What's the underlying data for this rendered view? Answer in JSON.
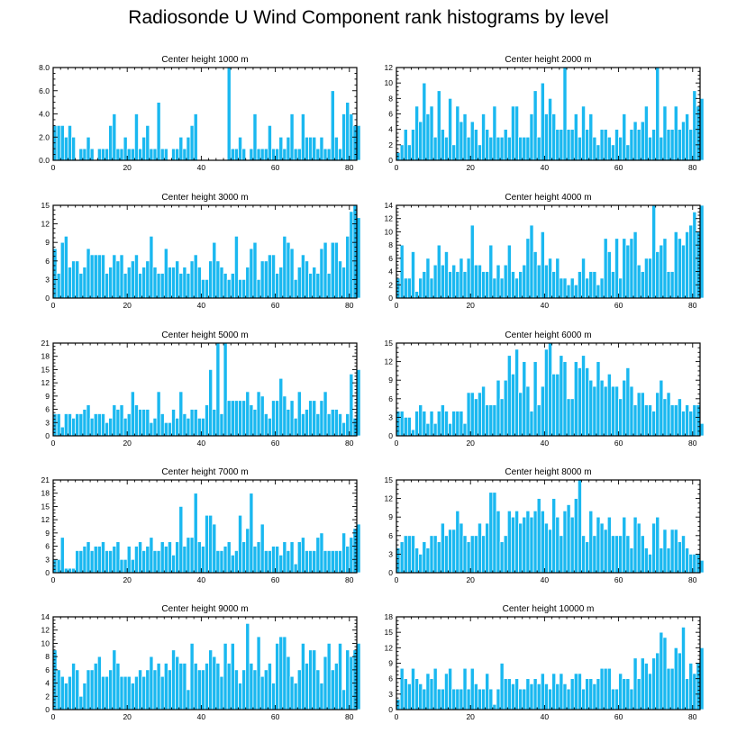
{
  "figure": {
    "title": "Radiosonde U Wind Component rank histograms by level",
    "bar_color": "#1ab8f0",
    "bar_edge_color": "#ffffff",
    "axis_color": "#000000"
  },
  "chart_data": [
    {
      "type": "bar",
      "title": "Center height 1000 m",
      "xlim": [
        0,
        82
      ],
      "xticks": [
        0,
        20,
        40,
        60,
        80
      ],
      "ylim": [
        0,
        8
      ],
      "yticks": [
        0,
        2,
        4,
        6,
        8
      ],
      "ytick_labels": [
        "0.0",
        "2.0",
        "4.0",
        "6.0",
        "8.0"
      ],
      "values": [
        3,
        3,
        3,
        2,
        3,
        2,
        0,
        1,
        1,
        2,
        1,
        0,
        1,
        1,
        1,
        3,
        4,
        1,
        1,
        2,
        1,
        1,
        4,
        1,
        2,
        3,
        1,
        1,
        5,
        1,
        1,
        0,
        1,
        1,
        2,
        1,
        2,
        3,
        4,
        0,
        0,
        0,
        0,
        0,
        0,
        0,
        0,
        8,
        1,
        1,
        2,
        1,
        0,
        1,
        4,
        1,
        1,
        1,
        3,
        1,
        1,
        2,
        1,
        2,
        4,
        1,
        1,
        4,
        2,
        2,
        2,
        1,
        2,
        1,
        1,
        6,
        2,
        1,
        4,
        5,
        4,
        3,
        3
      ]
    },
    {
      "type": "bar",
      "title": "Center height 2000 m",
      "xlim": [
        0,
        82
      ],
      "xticks": [
        0,
        20,
        40,
        60,
        80
      ],
      "ylim": [
        0,
        12
      ],
      "yticks": [
        0,
        2,
        4,
        6,
        8,
        10,
        12
      ],
      "ytick_labels": [
        "0",
        "2",
        "4",
        "6",
        "8",
        "10",
        "12"
      ],
      "values": [
        1,
        2,
        4,
        2,
        4,
        7,
        5,
        10,
        6,
        7,
        3,
        9,
        4,
        3,
        8,
        2,
        7,
        5,
        6,
        3,
        5,
        4,
        2,
        6,
        4,
        3,
        7,
        3,
        3,
        4,
        3,
        7,
        7,
        3,
        3,
        3,
        6,
        9,
        3,
        10,
        6,
        8,
        6,
        4,
        4,
        12,
        4,
        4,
        6,
        3,
        7,
        4,
        6,
        3,
        2,
        4,
        4,
        3,
        2,
        4,
        3,
        6,
        2,
        4,
        5,
        4,
        5,
        7,
        3,
        4,
        12,
        3,
        7,
        4,
        4,
        7,
        4,
        5,
        6,
        4,
        9,
        7,
        8
      ]
    },
    {
      "type": "bar",
      "title": "Center height 3000 m",
      "xlim": [
        0,
        82
      ],
      "xticks": [
        0,
        20,
        40,
        60,
        80
      ],
      "ylim": [
        0,
        15
      ],
      "yticks": [
        0,
        3,
        6,
        9,
        12,
        15
      ],
      "ytick_labels": [
        "0",
        "3",
        "6",
        "9",
        "12",
        "15"
      ],
      "values": [
        8,
        4,
        9,
        10,
        5,
        6,
        6,
        4,
        5,
        8,
        7,
        7,
        7,
        7,
        4,
        5,
        7,
        6,
        7,
        4,
        5,
        6,
        7,
        4,
        5,
        6,
        10,
        5,
        4,
        4,
        8,
        5,
        5,
        6,
        4,
        5,
        4,
        6,
        7,
        5,
        3,
        3,
        6,
        9,
        6,
        5,
        4,
        3,
        4,
        10,
        3,
        3,
        5,
        8,
        9,
        3,
        6,
        6,
        7,
        7,
        4,
        5,
        10,
        9,
        8,
        3,
        5,
        7,
        6,
        4,
        5,
        4,
        8,
        9,
        4,
        9,
        9,
        6,
        5,
        10,
        14,
        15,
        13
      ]
    },
    {
      "type": "bar",
      "title": "Center height 4000 m",
      "xlim": [
        0,
        82
      ],
      "xticks": [
        0,
        20,
        40,
        60,
        80
      ],
      "ylim": [
        0,
        14
      ],
      "yticks": [
        0,
        2,
        4,
        6,
        8,
        10,
        12,
        14
      ],
      "ytick_labels": [
        "0",
        "2",
        "4",
        "6",
        "8",
        "10",
        "12",
        "14"
      ],
      "values": [
        3,
        8,
        3,
        3,
        7,
        1,
        3,
        4,
        6,
        3,
        5,
        8,
        5,
        7,
        4,
        5,
        4,
        6,
        4,
        6,
        11,
        5,
        5,
        4,
        4,
        8,
        3,
        5,
        3,
        5,
        8,
        4,
        3,
        4,
        5,
        9,
        11,
        7,
        5,
        10,
        5,
        6,
        4,
        6,
        3,
        3,
        2,
        3,
        2,
        4,
        6,
        3,
        4,
        4,
        2,
        3,
        9,
        7,
        4,
        9,
        3,
        9,
        8,
        9,
        10,
        5,
        4,
        6,
        6,
        14,
        7,
        8,
        9,
        4,
        4,
        10,
        9,
        8,
        10,
        11,
        13,
        10,
        14
      ]
    },
    {
      "type": "bar",
      "title": "Center height 5000 m",
      "xlim": [
        0,
        82
      ],
      "xticks": [
        0,
        20,
        40,
        60,
        80
      ],
      "ylim": [
        0,
        21
      ],
      "yticks": [
        0,
        3,
        6,
        9,
        12,
        15,
        18,
        21
      ],
      "ytick_labels": [
        "0",
        "3",
        "6",
        "9",
        "12",
        "15",
        "18",
        "21"
      ],
      "values": [
        5,
        5,
        2,
        5,
        5,
        4,
        5,
        5,
        6,
        7,
        4,
        5,
        5,
        5,
        3,
        4,
        7,
        6,
        7,
        4,
        5,
        10,
        7,
        6,
        6,
        6,
        3,
        4,
        10,
        5,
        3,
        3,
        6,
        4,
        10,
        5,
        4,
        6,
        6,
        4,
        4,
        7,
        15,
        6,
        21,
        5,
        21,
        8,
        8,
        8,
        8,
        8,
        10,
        7,
        6,
        10,
        9,
        5,
        4,
        8,
        8,
        13,
        9,
        6,
        8,
        4,
        10,
        5,
        6,
        8,
        8,
        5,
        8,
        10,
        5,
        6,
        6,
        5,
        3,
        5,
        14,
        4,
        15
      ]
    },
    {
      "type": "bar",
      "title": "Center height 6000 m",
      "xlim": [
        0,
        82
      ],
      "xticks": [
        0,
        20,
        40,
        60,
        80
      ],
      "ylim": [
        0,
        15
      ],
      "yticks": [
        0,
        3,
        6,
        9,
        12,
        15
      ],
      "ytick_labels": [
        "0",
        "3",
        "6",
        "9",
        "12",
        "15"
      ],
      "values": [
        4,
        4,
        3,
        3,
        1,
        4,
        5,
        4,
        2,
        4,
        2,
        4,
        5,
        4,
        2,
        4,
        4,
        4,
        2,
        7,
        7,
        6,
        7,
        8,
        5,
        5,
        5,
        9,
        6,
        9,
        13,
        10,
        14,
        7,
        12,
        8,
        4,
        12,
        5,
        8,
        14,
        15,
        10,
        10,
        13,
        12,
        6,
        6,
        12,
        11,
        13,
        11,
        9,
        8,
        12,
        9,
        8,
        10,
        8,
        8,
        6,
        9,
        11,
        8,
        5,
        7,
        7,
        5,
        5,
        4,
        7,
        9,
        6,
        7,
        5,
        5,
        6,
        4,
        5,
        4,
        5,
        5,
        2
      ]
    },
    {
      "type": "bar",
      "title": "Center height 7000 m",
      "xlim": [
        0,
        82
      ],
      "xticks": [
        0,
        20,
        40,
        60,
        80
      ],
      "ylim": [
        0,
        21
      ],
      "yticks": [
        0,
        3,
        6,
        9,
        12,
        15,
        18,
        21
      ],
      "ytick_labels": [
        "0",
        "3",
        "6",
        "9",
        "12",
        "15",
        "18",
        "21"
      ],
      "values": [
        3,
        3,
        8,
        1,
        1,
        1,
        5,
        5,
        6,
        7,
        5,
        6,
        6,
        7,
        5,
        5,
        6,
        7,
        3,
        3,
        6,
        3,
        6,
        7,
        5,
        6,
        8,
        5,
        5,
        7,
        6,
        7,
        4,
        7,
        15,
        6,
        8,
        8,
        18,
        7,
        6,
        13,
        13,
        11,
        5,
        5,
        6,
        7,
        4,
        5,
        13,
        7,
        10,
        18,
        6,
        7,
        11,
        5,
        5,
        6,
        6,
        4,
        7,
        5,
        7,
        2,
        7,
        8,
        5,
        5,
        5,
        8,
        9,
        5,
        5,
        5,
        5,
        5,
        9,
        6,
        8,
        10,
        11
      ]
    },
    {
      "type": "bar",
      "title": "Center height 8000 m",
      "xlim": [
        0,
        82
      ],
      "xticks": [
        0,
        20,
        40,
        60,
        80
      ],
      "ylim": [
        0,
        15
      ],
      "yticks": [
        0,
        3,
        6,
        9,
        12,
        15
      ],
      "ytick_labels": [
        "0",
        "3",
        "6",
        "9",
        "12",
        "15"
      ],
      "values": [
        4,
        5,
        6,
        6,
        6,
        4,
        3,
        5,
        4,
        6,
        6,
        5,
        8,
        6,
        7,
        7,
        10,
        8,
        6,
        5,
        6,
        6,
        8,
        6,
        8,
        13,
        13,
        10,
        5,
        6,
        10,
        9,
        10,
        8,
        9,
        10,
        9,
        10,
        12,
        10,
        8,
        7,
        12,
        9,
        6,
        10,
        11,
        9,
        12,
        15,
        6,
        5,
        10,
        6,
        9,
        8,
        7,
        9,
        6,
        6,
        6,
        9,
        6,
        4,
        9,
        8,
        6,
        4,
        3,
        8,
        9,
        4,
        7,
        4,
        7,
        7,
        5,
        6,
        4,
        3,
        3,
        3,
        2
      ]
    },
    {
      "type": "bar",
      "title": "Center height 9000 m",
      "xlim": [
        0,
        82
      ],
      "xticks": [
        0,
        20,
        40,
        60,
        80
      ],
      "ylim": [
        0,
        14
      ],
      "yticks": [
        0,
        2,
        4,
        6,
        8,
        10,
        12,
        14
      ],
      "ytick_labels": [
        "0",
        "2",
        "4",
        "6",
        "8",
        "10",
        "12",
        "14"
      ],
      "values": [
        9,
        6,
        5,
        4,
        5,
        7,
        6,
        2,
        4,
        6,
        6,
        7,
        8,
        5,
        5,
        6,
        9,
        7,
        5,
        5,
        5,
        4,
        5,
        6,
        5,
        6,
        8,
        6,
        7,
        5,
        7,
        6,
        9,
        8,
        7,
        7,
        3,
        10,
        7,
        6,
        6,
        7,
        9,
        8,
        7,
        5,
        10,
        7,
        10,
        6,
        4,
        6,
        13,
        7,
        6,
        11,
        5,
        6,
        7,
        4,
        10,
        11,
        11,
        8,
        5,
        4,
        6,
        10,
        7,
        9,
        9,
        6,
        4,
        8,
        10,
        6,
        7,
        10,
        3,
        9,
        8,
        9,
        10
      ]
    },
    {
      "type": "bar",
      "title": "Center height 10000 m",
      "xlim": [
        0,
        82
      ],
      "xticks": [
        0,
        20,
        40,
        60,
        80
      ],
      "ylim": [
        0,
        18
      ],
      "yticks": [
        0,
        3,
        6,
        9,
        12,
        15,
        18
      ],
      "ytick_labels": [
        "0",
        "3",
        "6",
        "9",
        "12",
        "15",
        "18"
      ],
      "values": [
        2,
        8,
        6,
        5,
        8,
        6,
        5,
        4,
        7,
        6,
        8,
        4,
        4,
        7,
        8,
        4,
        4,
        4,
        8,
        4,
        8,
        5,
        4,
        4,
        7,
        4,
        1,
        4,
        9,
        6,
        6,
        5,
        6,
        4,
        4,
        6,
        5,
        6,
        5,
        7,
        5,
        4,
        7,
        5,
        7,
        5,
        4,
        6,
        7,
        7,
        4,
        6,
        6,
        5,
        6,
        8,
        8,
        8,
        4,
        4,
        7,
        6,
        6,
        4,
        10,
        6,
        10,
        9,
        7,
        10,
        11,
        15,
        14,
        8,
        8,
        12,
        11,
        16,
        6,
        9,
        7,
        9,
        12
      ]
    }
  ]
}
